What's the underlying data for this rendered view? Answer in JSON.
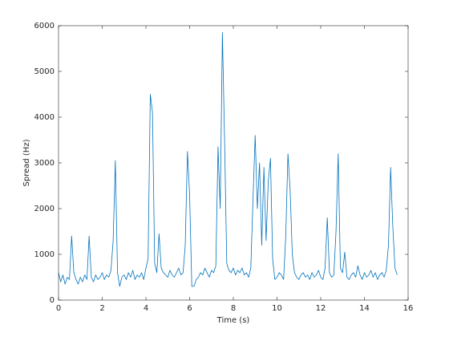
{
  "chart_data": {
    "type": "line",
    "xlabel": "Time (s)",
    "ylabel": "Spread (Hz)",
    "color": "#0072bd",
    "xlim": [
      0,
      16
    ],
    "xticks": [
      0,
      2,
      4,
      6,
      8,
      10,
      12,
      14,
      16
    ],
    "ylim": [
      0,
      6000
    ],
    "yticks": [
      0,
      1000,
      2000,
      3000,
      4000,
      5000,
      6000
    ],
    "x": [
      0.0,
      0.1,
      0.2,
      0.3,
      0.4,
      0.5,
      0.6,
      0.7,
      0.8,
      0.9,
      1.0,
      1.1,
      1.2,
      1.3,
      1.4,
      1.5,
      1.6,
      1.7,
      1.8,
      1.9,
      2.0,
      2.1,
      2.2,
      2.3,
      2.4,
      2.5,
      2.6,
      2.7,
      2.8,
      2.9,
      3.0,
      3.1,
      3.2,
      3.3,
      3.4,
      3.5,
      3.6,
      3.7,
      3.8,
      3.9,
      4.0,
      4.1,
      4.2,
      4.3,
      4.4,
      4.5,
      4.6,
      4.7,
      4.8,
      4.9,
      5.0,
      5.1,
      5.2,
      5.3,
      5.4,
      5.5,
      5.6,
      5.7,
      5.8,
      5.9,
      6.0,
      6.1,
      6.2,
      6.3,
      6.4,
      6.5,
      6.6,
      6.7,
      6.8,
      6.9,
      7.0,
      7.1,
      7.2,
      7.3,
      7.4,
      7.5,
      7.6,
      7.7,
      7.8,
      7.9,
      8.0,
      8.1,
      8.2,
      8.3,
      8.4,
      8.5,
      8.6,
      8.7,
      8.8,
      8.9,
      9.0,
      9.1,
      9.2,
      9.3,
      9.4,
      9.5,
      9.6,
      9.7,
      9.8,
      9.9,
      10.0,
      10.1,
      10.2,
      10.3,
      10.4,
      10.5,
      10.6,
      10.7,
      10.8,
      10.9,
      11.0,
      11.1,
      11.2,
      11.3,
      11.4,
      11.5,
      11.6,
      11.7,
      11.8,
      11.9,
      12.0,
      12.1,
      12.2,
      12.3,
      12.4,
      12.5,
      12.6,
      12.7,
      12.8,
      12.9,
      13.0,
      13.1,
      13.2,
      13.3,
      13.4,
      13.5,
      13.6,
      13.7,
      13.8,
      13.9,
      14.0,
      14.1,
      14.2,
      14.3,
      14.4,
      14.5,
      14.6,
      14.7,
      14.8,
      14.9,
      15.0,
      15.1,
      15.2,
      15.3,
      15.4,
      15.5
    ],
    "values": [
      600,
      400,
      550,
      350,
      500,
      450,
      1400,
      600,
      450,
      350,
      500,
      400,
      550,
      450,
      1400,
      500,
      400,
      550,
      450,
      500,
      600,
      450,
      550,
      500,
      650,
      1300,
      3050,
      600,
      300,
      500,
      550,
      450,
      600,
      500,
      650,
      450,
      550,
      500,
      600,
      450,
      700,
      900,
      4500,
      4100,
      800,
      600,
      1450,
      700,
      600,
      550,
      500,
      650,
      550,
      500,
      600,
      700,
      550,
      600,
      1200,
      3250,
      2300,
      300,
      300,
      450,
      500,
      600,
      550,
      700,
      600,
      500,
      650,
      600,
      750,
      3350,
      2000,
      5850,
      3500,
      800,
      650,
      600,
      700,
      550,
      650,
      600,
      700,
      550,
      600,
      500,
      700,
      2200,
      3600,
      2000,
      3000,
      1200,
      2900,
      1300,
      2600,
      3100,
      900,
      450,
      500,
      600,
      550,
      450,
      1400,
      3200,
      2400,
      1000,
      600,
      500,
      450,
      550,
      600,
      500,
      550,
      450,
      600,
      500,
      550,
      650,
      500,
      450,
      700,
      1800,
      600,
      500,
      550,
      1500,
      3200,
      700,
      600,
      1050,
      500,
      450,
      550,
      600,
      500,
      750,
      550,
      450,
      600,
      500,
      550,
      650,
      500,
      600,
      450,
      550,
      600,
      500,
      650,
      1200,
      2900,
      1600,
      700,
      550
    ]
  }
}
